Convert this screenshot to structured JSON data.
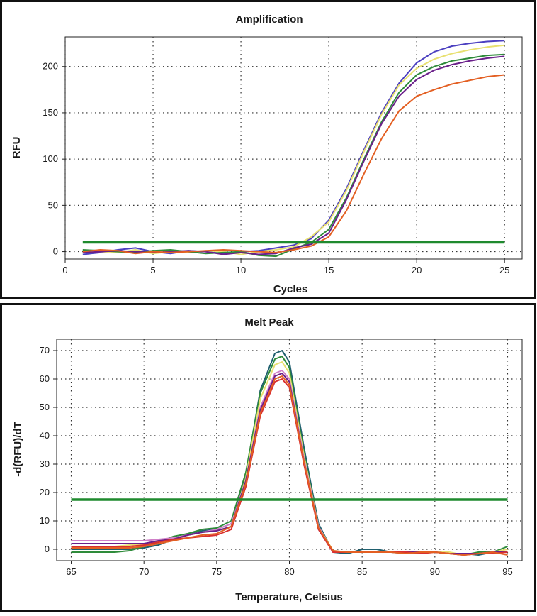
{
  "chart_data": [
    {
      "type": "line",
      "title": "Amplification",
      "xlabel": "Cycles",
      "ylabel": "RFU",
      "xlim": [
        0,
        26
      ],
      "ylim": [
        -8,
        232
      ],
      "xticks": [
        "0",
        "5",
        "10",
        "15",
        "20",
        "25"
      ],
      "yticks": [
        "0",
        "50",
        "100",
        "150",
        "200"
      ],
      "grid": true,
      "threshold": 10,
      "threshold_color": "#1f8a2e",
      "x": [
        1,
        2,
        3,
        4,
        5,
        6,
        7,
        8,
        9,
        10,
        11,
        12,
        13,
        14,
        15,
        16,
        17,
        18,
        19,
        20,
        21,
        22,
        23,
        24,
        25
      ],
      "series": [
        {
          "color": "#4b3fc0",
          "values": [
            -3,
            -1,
            2,
            4,
            0,
            -2,
            1,
            0,
            -2,
            0,
            1,
            4,
            7,
            14,
            34,
            68,
            110,
            150,
            182,
            204,
            216,
            222,
            225,
            227,
            228
          ]
        },
        {
          "color": "#e8e070",
          "values": [
            1,
            0,
            -1,
            2,
            -2,
            0,
            -1,
            1,
            0,
            -3,
            0,
            2,
            5,
            16,
            32,
            66,
            108,
            148,
            180,
            198,
            208,
            214,
            218,
            221,
            223
          ]
        },
        {
          "color": "#2e8b3a",
          "values": [
            2,
            1,
            0,
            -1,
            1,
            2,
            0,
            -2,
            -1,
            0,
            -4,
            -5,
            3,
            10,
            24,
            58,
            100,
            140,
            172,
            191,
            200,
            206,
            209,
            212,
            213
          ]
        },
        {
          "color": "#6a1f8a",
          "values": [
            -1,
            0,
            1,
            0,
            -1,
            0,
            1,
            0,
            -3,
            -1,
            -3,
            -2,
            4,
            8,
            20,
            56,
            98,
            138,
            168,
            186,
            196,
            202,
            206,
            209,
            211
          ]
        },
        {
          "color": "#e35f22",
          "values": [
            0,
            2,
            1,
            -2,
            0,
            -1,
            0,
            1,
            2,
            1,
            0,
            -1,
            2,
            6,
            16,
            44,
            84,
            122,
            152,
            168,
            175,
            181,
            185,
            189,
            191
          ]
        }
      ]
    },
    {
      "type": "line",
      "title": "Melt Peak",
      "xlabel": "Temperature, Celsius",
      "ylabel": "-d(RFU)/dT",
      "xlim": [
        64,
        96
      ],
      "ylim": [
        -4,
        74
      ],
      "xticks": [
        "65",
        "70",
        "75",
        "80",
        "85",
        "90",
        "95"
      ],
      "yticks": [
        "0",
        "10",
        "20",
        "30",
        "40",
        "50",
        "60",
        "70"
      ],
      "grid": true,
      "threshold": 17.5,
      "threshold_color": "#1f8a2e",
      "x": [
        65,
        66,
        67,
        68,
        69,
        70,
        71,
        72,
        73,
        74,
        75,
        76,
        77,
        78,
        79,
        79.5,
        80,
        81,
        82,
        83,
        84,
        85,
        86,
        87,
        88,
        89,
        90,
        91,
        92,
        93,
        94,
        95
      ],
      "series": [
        {
          "color": "#1f5f6e",
          "values": [
            0,
            0,
            0,
            0,
            0,
            0.5,
            1.5,
            3.5,
            5,
            6.5,
            7,
            9,
            26,
            56,
            69,
            70,
            66,
            36,
            9,
            -1,
            -1.5,
            0,
            0,
            -1,
            -1,
            -1,
            -1,
            -1.5,
            -1.5,
            -2,
            -1,
            -1
          ]
        },
        {
          "color": "#2e8b3a",
          "values": [
            -1,
            -1,
            -1,
            -1,
            -0.5,
            1,
            2.5,
            4.5,
            5.5,
            7,
            7.5,
            10,
            27,
            55,
            67,
            68,
            64,
            34,
            8,
            -1,
            -1,
            -1,
            -1,
            -1,
            -1.5,
            -1,
            -1,
            -1.5,
            -2,
            -1,
            -1,
            1
          ]
        },
        {
          "color": "#e8e070",
          "values": [
            1,
            1,
            1,
            1,
            1.5,
            2,
            2.5,
            3.5,
            5,
            6,
            6.5,
            8,
            25,
            53,
            65,
            66,
            62,
            33,
            8,
            -0.5,
            -1,
            -1,
            -1,
            -1,
            -1,
            -1.5,
            -1,
            -1,
            -2,
            -1.5,
            -1,
            0
          ]
        },
        {
          "color": "#d080c8",
          "values": [
            3,
            3,
            3,
            3,
            3,
            3,
            3.5,
            4,
            5,
            6,
            7,
            9,
            24,
            50,
            62,
            63,
            60,
            32,
            8,
            -1,
            -1,
            -1,
            -1,
            -1,
            -1.5,
            -1,
            -1,
            -1.5,
            -2,
            -1.5,
            -1,
            -1
          ]
        },
        {
          "color": "#6a1f8a",
          "values": [
            2,
            2,
            2,
            2,
            2,
            2,
            3,
            3.5,
            5,
            6,
            6.5,
            8,
            24,
            49,
            61,
            62,
            59,
            31,
            7,
            -1,
            -1,
            -1,
            -1,
            -1,
            -1,
            -1,
            -1,
            -1.5,
            -1.5,
            -1.5,
            -1,
            -1
          ]
        },
        {
          "color": "#d93030",
          "values": [
            1,
            1,
            1,
            1,
            1,
            1.5,
            2.5,
            3.5,
            4,
            4.5,
            5,
            7,
            22,
            47,
            59,
            60,
            57,
            30,
            7,
            -1,
            -1,
            -1,
            -1,
            -1,
            -1,
            -1.5,
            -1,
            -1.5,
            -2,
            -1.5,
            -1.5,
            -1
          ]
        },
        {
          "color": "#e35f22",
          "values": [
            0.5,
            0.5,
            0.5,
            0.5,
            0.5,
            1,
            2,
            3,
            4,
            5,
            5.5,
            8,
            23,
            48,
            60,
            61,
            58,
            31,
            7.5,
            -0.5,
            -1,
            -1,
            -1,
            -1,
            -1.5,
            -1,
            -1,
            -1.5,
            -2,
            -1.5,
            -1,
            -2
          ]
        }
      ]
    }
  ]
}
